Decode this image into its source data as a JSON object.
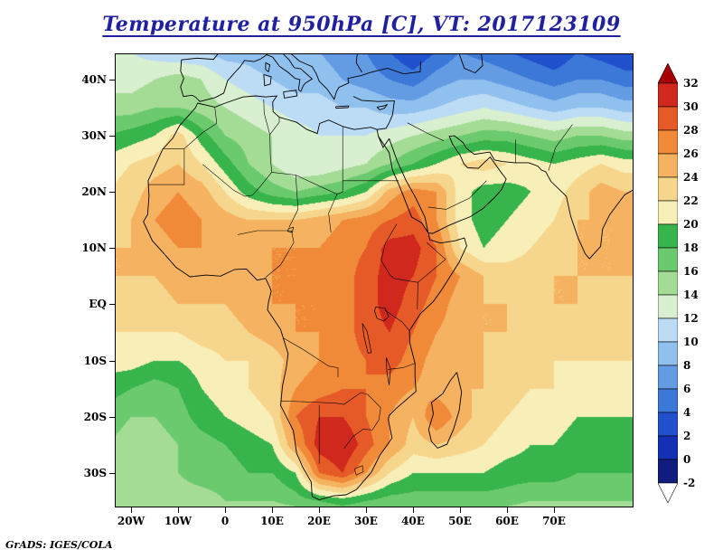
{
  "title": {
    "text": "Temperature at 950hPa [C], VT: 2017123109",
    "color": "#2020a0"
  },
  "attribution": {
    "text": "GrADS: IGES/COLA"
  },
  "axes": {
    "y": [
      {
        "label": "40N",
        "lat": 40
      },
      {
        "label": "30N",
        "lat": 30
      },
      {
        "label": "20N",
        "lat": 20
      },
      {
        "label": "10N",
        "lat": 10
      },
      {
        "label": "EQ",
        "lat": 0
      },
      {
        "label": "10S",
        "lat": -10
      },
      {
        "label": "20S",
        "lat": -20
      },
      {
        "label": "30S",
        "lat": -30
      }
    ],
    "x": [
      {
        "label": "20W",
        "lon": -20
      },
      {
        "label": "10W",
        "lon": -10
      },
      {
        "label": "0",
        "lon": 0
      },
      {
        "label": "10E",
        "lon": 10
      },
      {
        "label": "20E",
        "lon": 20
      },
      {
        "label": "30E",
        "lon": 30
      },
      {
        "label": "40E",
        "lon": 40
      },
      {
        "label": "50E",
        "lon": 50
      },
      {
        "label": "60E",
        "lon": 60
      },
      {
        "label": "70E",
        "lon": 70
      }
    ]
  },
  "colorbar": {
    "labels": [
      "32",
      "30",
      "28",
      "26",
      "24",
      "22",
      "20",
      "18",
      "16",
      "14",
      "12",
      "10",
      "8",
      "6",
      "4",
      "2",
      "0",
      "-2"
    ],
    "box_colors_top_to_bottom": [
      "#d0281c",
      "#e65a28",
      "#f08a38",
      "#f5b260",
      "#f6d68c",
      "#f8efb8",
      "#38b44c",
      "#6cca6e",
      "#a4dc96",
      "#d8efd0",
      "#bcdcf5",
      "#90c0ee",
      "#649ce4",
      "#3c78d8",
      "#2050cc",
      "#1430b4",
      "#101c7e"
    ],
    "above_color": "#a80000",
    "below_color": "#ffffff"
  },
  "chart_data": {
    "type": "heatmap",
    "title": "Temperature at 950hPa [C], VT: 2017123109",
    "variable": "Temperature",
    "level": "950hPa",
    "units": "C",
    "valid_time": "2017123109",
    "contour_min": -2,
    "contour_max": 32,
    "contour_interval": 2,
    "lon_min": -25,
    "lon_max": 85,
    "lat_min": -40,
    "lat_max": 45,
    "grid_step_deg": 5,
    "lons": [
      -25,
      -20,
      -15,
      -10,
      -5,
      0,
      5,
      10,
      15,
      20,
      25,
      30,
      35,
      40,
      45,
      50,
      55,
      60,
      65,
      70,
      75,
      80,
      85
    ],
    "lats": [
      45,
      40,
      35,
      30,
      25,
      20,
      15,
      10,
      5,
      0,
      -5,
      -10,
      -15,
      -20,
      -25,
      -30,
      -35,
      -40
    ],
    "temps": [
      [
        12,
        12,
        11,
        10,
        10,
        9,
        9,
        8,
        8,
        8,
        7,
        6,
        4,
        2,
        4,
        6,
        5,
        4,
        3,
        2,
        4,
        3,
        2
      ],
      [
        13,
        13,
        14,
        15,
        14,
        12,
        11,
        10,
        9,
        9,
        8,
        7,
        6,
        5,
        7,
        8,
        8,
        7,
        6,
        5,
        6,
        6,
        5
      ],
      [
        15,
        15,
        16,
        16,
        15,
        14,
        13,
        12,
        11,
        11,
        10,
        10,
        9,
        9,
        10,
        11,
        12,
        11,
        10,
        9,
        10,
        10,
        9
      ],
      [
        18,
        19,
        20,
        23,
        19,
        16,
        15,
        14,
        13,
        12,
        12,
        12,
        13,
        14,
        15,
        16,
        17,
        17,
        16,
        15,
        16,
        16,
        15
      ],
      [
        21,
        22,
        23,
        24,
        22,
        19,
        16,
        14,
        12,
        12,
        13,
        14,
        16,
        18,
        20,
        22,
        23,
        22,
        21,
        20,
        21,
        22,
        21
      ],
      [
        22,
        23,
        25,
        26,
        25,
        22,
        19,
        17,
        16,
        17,
        18,
        20,
        25,
        27,
        26,
        21,
        19,
        19,
        20,
        21,
        23,
        25,
        24
      ],
      [
        23,
        24,
        26,
        27,
        26,
        25,
        24,
        24,
        24,
        25,
        26,
        27,
        28,
        29,
        26,
        21,
        19,
        20,
        21,
        22,
        24,
        24,
        24
      ],
      [
        24,
        24,
        25,
        26,
        26,
        26,
        26,
        26,
        26,
        26,
        27,
        28,
        31,
        31,
        28,
        22,
        20,
        21,
        22,
        23,
        24,
        24,
        24
      ],
      [
        24,
        24,
        24,
        25,
        25,
        25,
        25,
        26,
        26,
        27,
        27,
        29,
        31,
        30,
        28,
        26,
        24,
        23,
        23,
        24,
        24,
        24,
        24
      ],
      [
        23,
        23,
        23,
        24,
        24,
        24,
        25,
        26,
        26,
        26,
        27,
        29,
        31,
        29,
        27,
        25,
        24,
        24,
        24,
        24,
        24,
        23,
        23
      ],
      [
        22,
        22,
        22,
        22,
        23,
        23,
        24,
        25,
        26,
        26,
        27,
        29,
        30,
        28,
        26,
        25,
        24,
        24,
        23,
        23,
        23,
        23,
        22
      ],
      [
        21,
        21,
        20,
        20,
        21,
        22,
        22,
        23,
        25,
        26,
        27,
        28,
        29,
        27,
        25,
        25,
        24,
        23,
        23,
        22,
        22,
        22,
        22
      ],
      [
        19,
        18,
        17,
        18,
        20,
        21,
        22,
        23,
        26,
        27,
        28,
        28,
        27,
        26,
        25,
        24,
        24,
        23,
        22,
        22,
        21,
        21,
        21
      ],
      [
        17,
        16,
        16,
        17,
        19,
        20,
        21,
        22,
        28,
        30,
        30,
        28,
        26,
        24,
        28,
        25,
        23,
        22,
        21,
        21,
        20,
        20,
        20
      ],
      [
        16,
        15,
        15,
        16,
        17,
        18,
        19,
        20,
        26,
        31,
        32,
        29,
        26,
        23,
        24,
        23,
        22,
        21,
        20,
        20,
        19,
        19,
        19
      ],
      [
        16,
        16,
        16,
        16,
        17,
        17,
        18,
        18,
        20,
        28,
        30,
        26,
        22,
        20,
        20,
        20,
        20,
        19,
        19,
        19,
        18,
        18,
        18
      ],
      [
        15,
        15,
        15,
        15,
        15,
        16,
        16,
        16,
        17,
        18,
        19,
        18,
        17,
        17,
        17,
        17,
        17,
        17,
        16,
        16,
        16,
        16,
        16
      ],
      [
        11,
        11,
        11,
        11,
        11,
        12,
        12,
        12,
        12,
        13,
        13,
        13,
        12,
        12,
        12,
        12,
        12,
        12,
        11,
        11,
        11,
        11,
        11
      ]
    ]
  }
}
